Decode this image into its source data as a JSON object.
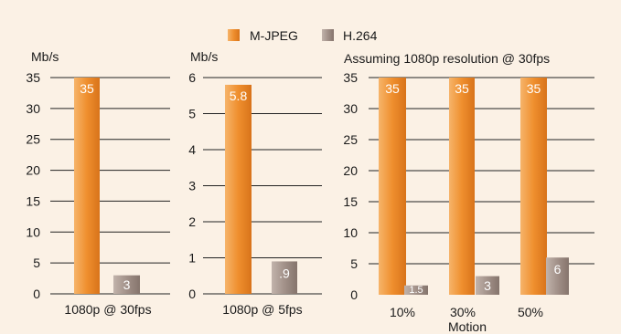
{
  "legend": {
    "items": [
      {
        "label": "M-JPEG",
        "color": "#ef8f2e"
      },
      {
        "label": "H.264",
        "color": "#a29189"
      }
    ]
  },
  "colors": {
    "background": "#fbf1e5",
    "mjpeg": "#ef8f2e",
    "h264": "#a29189",
    "grid": "#222222"
  },
  "chart_data": [
    {
      "type": "bar",
      "ylabel": "Mb/s",
      "ylim": [
        0,
        35
      ],
      "yticks": [
        0,
        5,
        10,
        15,
        20,
        25,
        30,
        35
      ],
      "categories": [
        "1080p @ 30fps"
      ],
      "series": [
        {
          "name": "M-JPEG",
          "values": [
            35
          ],
          "labels": [
            "35"
          ]
        },
        {
          "name": "H.264",
          "values": [
            3
          ],
          "labels": [
            "3"
          ]
        }
      ],
      "grid": true
    },
    {
      "type": "bar",
      "ylabel": "Mb/s",
      "ylim": [
        0,
        6
      ],
      "yticks": [
        0,
        1,
        2,
        3,
        4,
        5,
        6
      ],
      "categories": [
        "1080p @ 5fps"
      ],
      "series": [
        {
          "name": "M-JPEG",
          "values": [
            5.8
          ],
          "labels": [
            "5.8"
          ]
        },
        {
          "name": "H.264",
          "values": [
            0.9
          ],
          "labels": [
            ".9"
          ]
        }
      ],
      "grid": true
    },
    {
      "type": "bar",
      "title": "Assuming 1080p resolution @ 30fps",
      "xlabel": "Motion",
      "ylim": [
        0,
        35
      ],
      "yticks": [
        0,
        5,
        10,
        15,
        20,
        25,
        30,
        35
      ],
      "categories": [
        "10%",
        "30%",
        "50%"
      ],
      "series": [
        {
          "name": "M-JPEG",
          "values": [
            35,
            35,
            35
          ],
          "labels": [
            "35",
            "35",
            "35"
          ]
        },
        {
          "name": "H.264",
          "values": [
            1.5,
            3,
            6
          ],
          "labels": [
            "1.5",
            "3",
            "6"
          ]
        }
      ],
      "grid": true
    }
  ]
}
